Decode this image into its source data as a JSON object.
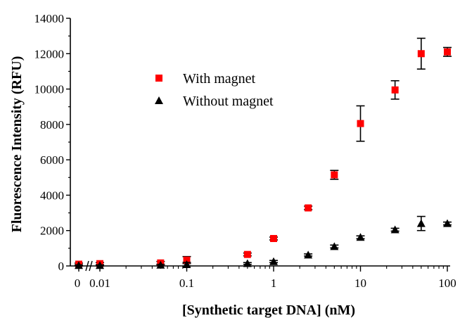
{
  "chart_data": {
    "type": "scatter",
    "xlabel": "[Synthetic target DNA] (nM)",
    "ylabel": "Fluorescence Intensity (RFU)",
    "x_scale": "log with zero point",
    "x_tick_labels": [
      "0",
      "0.01",
      "0.1",
      "1",
      "10",
      "100"
    ],
    "y_ticks": [
      0,
      2000,
      4000,
      6000,
      8000,
      10000,
      12000,
      14000
    ],
    "ylim": [
      0,
      14000
    ],
    "grid": false,
    "legend_position": "upper-left",
    "series": [
      {
        "name": "With magnet",
        "marker": "square",
        "color": "#ff0000",
        "points": [
          {
            "x": 0,
            "y": 100,
            "err": 60
          },
          {
            "x": 0.01,
            "y": 130,
            "err": 60
          },
          {
            "x": 0.05,
            "y": 170,
            "err": 80
          },
          {
            "x": 0.1,
            "y": 330,
            "err": 200
          },
          {
            "x": 0.5,
            "y": 650,
            "err": 80
          },
          {
            "x": 1,
            "y": 1550,
            "err": 80
          },
          {
            "x": 2.5,
            "y": 3280,
            "err": 100
          },
          {
            "x": 5,
            "y": 5150,
            "err": 250
          },
          {
            "x": 10,
            "y": 8050,
            "err": 1000
          },
          {
            "x": 25,
            "y": 9950,
            "err": 520
          },
          {
            "x": 50,
            "y": 12000,
            "err": 870
          },
          {
            "x": 100,
            "y": 12100,
            "err": 250
          }
        ]
      },
      {
        "name": "Without magnet",
        "marker": "triangle",
        "color": "#000000",
        "points": [
          {
            "x": 0,
            "y": 30,
            "err": 30
          },
          {
            "x": 0.01,
            "y": 30,
            "err": 30
          },
          {
            "x": 0.05,
            "y": 50,
            "err": 40
          },
          {
            "x": 0.1,
            "y": 80,
            "err": 120
          },
          {
            "x": 0.5,
            "y": 140,
            "err": 50
          },
          {
            "x": 1,
            "y": 250,
            "err": 60
          },
          {
            "x": 2.5,
            "y": 620,
            "err": 60
          },
          {
            "x": 5,
            "y": 1100,
            "err": 80
          },
          {
            "x": 10,
            "y": 1620,
            "err": 80
          },
          {
            "x": 25,
            "y": 2050,
            "err": 80
          },
          {
            "x": 50,
            "y": 2400,
            "err": 400
          },
          {
            "x": 100,
            "y": 2400,
            "err": 80
          }
        ]
      }
    ]
  }
}
